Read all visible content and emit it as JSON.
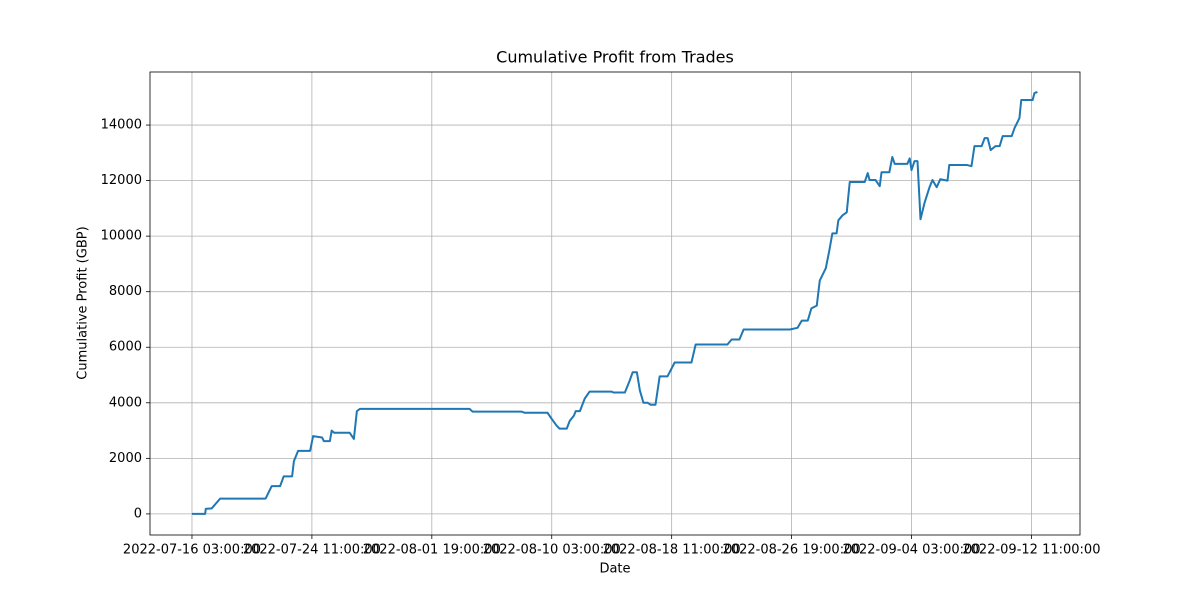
{
  "chart_data": {
    "type": "line",
    "title": "Cumulative Profit from Trades",
    "x_label": "Date",
    "y_label": "Cumulative Profit (GBP)",
    "x": [
      "2022-07-16 03:00",
      "2022-07-17 01:00",
      "2022-07-17 02:00",
      "2022-07-17 12:00",
      "2022-07-18 02:00",
      "2022-07-21 05:00",
      "2022-07-21 06:00",
      "2022-07-21 16:00",
      "2022-07-22 06:00",
      "2022-07-22 12:00",
      "2022-07-23 02:00",
      "2022-07-23 05:00",
      "2022-07-23 12:00",
      "2022-07-24 08:00",
      "2022-07-24 13:00",
      "2022-07-25 04:00",
      "2022-07-25 07:00",
      "2022-07-25 17:00",
      "2022-07-25 20:00",
      "2022-07-26 00:00",
      "2022-07-27 02:00",
      "2022-07-27 09:00",
      "2022-07-27 14:00",
      "2022-07-27 19:00",
      "2022-08-04 10:00",
      "2022-08-04 15:00",
      "2022-08-08 01:00",
      "2022-08-08 06:00",
      "2022-08-09 20:00",
      "2022-08-10 03:00",
      "2022-08-10 11:00",
      "2022-08-10 16:00",
      "2022-08-11 04:00",
      "2022-08-11 09:00",
      "2022-08-11 16:00",
      "2022-08-11 19:00",
      "2022-08-12 02:00",
      "2022-08-12 10:00",
      "2022-08-12 18:00",
      "2022-08-14 07:00",
      "2022-08-14 10:00",
      "2022-08-15 05:00",
      "2022-08-15 13:00",
      "2022-08-15 18:00",
      "2022-08-16 01:00",
      "2022-08-16 06:00",
      "2022-08-16 12:00",
      "2022-08-16 19:00",
      "2022-08-17 00:00",
      "2022-08-17 08:00",
      "2022-08-17 15:00",
      "2022-08-18 04:00",
      "2022-08-18 16:00",
      "2022-08-19 20:00",
      "2022-08-20 03:00",
      "2022-08-22 08:00",
      "2022-08-22 15:00",
      "2022-08-23 04:00",
      "2022-08-23 11:00",
      "2022-08-26 16:00",
      "2022-08-27 05:00",
      "2022-08-27 12:00",
      "2022-08-27 22:00",
      "2022-08-28 04:00",
      "2022-08-28 13:00",
      "2022-08-28 18:00",
      "2022-08-29 04:00",
      "2022-08-29 10:00",
      "2022-08-29 15:00",
      "2022-08-29 22:00",
      "2022-08-30 01:00",
      "2022-08-30 08:00",
      "2022-08-30 15:00",
      "2022-08-30 20:00",
      "2022-08-31 21:00",
      "2022-09-01 02:00",
      "2022-09-01 05:00",
      "2022-09-01 15:00",
      "2022-09-01 22:00",
      "2022-09-02 01:00",
      "2022-09-02 14:00",
      "2022-09-02 19:00",
      "2022-09-02 23:00",
      "2022-09-03 20:00",
      "2022-09-04 00:00",
      "2022-09-04 03:00",
      "2022-09-04 08:00",
      "2022-09-04 13:00",
      "2022-09-04 18:00",
      "2022-09-05 01:00",
      "2022-09-05 09:00",
      "2022-09-05 14:00",
      "2022-09-05 21:00",
      "2022-09-06 03:00",
      "2022-09-06 15:00",
      "2022-09-06 18:00",
      "2022-09-08 00:00",
      "2022-09-08 07:00",
      "2022-09-08 12:00",
      "2022-09-09 00:00",
      "2022-09-09 05:00",
      "2022-09-09 10:00",
      "2022-09-09 15:00",
      "2022-09-09 23:00",
      "2022-09-10 06:00",
      "2022-09-10 11:00",
      "2022-09-11 02:00",
      "2022-09-11 07:00",
      "2022-09-11 15:00",
      "2022-09-11 18:00",
      "2022-09-12 13:00",
      "2022-09-12 16:00",
      "2022-09-12 21:00"
    ],
    "values": [
      0,
      0,
      180,
      200,
      550,
      550,
      560,
      1000,
      1000,
      1350,
      1350,
      1900,
      2270,
      2270,
      2800,
      2750,
      2620,
      2620,
      3000,
      2920,
      2920,
      2700,
      3700,
      3780,
      3780,
      3680,
      3680,
      3640,
      3640,
      3420,
      3180,
      3070,
      3070,
      3350,
      3540,
      3700,
      3700,
      4150,
      4400,
      4400,
      4370,
      4370,
      4800,
      5100,
      5100,
      4440,
      4000,
      4000,
      3930,
      3930,
      4950,
      4950,
      5450,
      5450,
      6100,
      6100,
      6280,
      6280,
      6640,
      6640,
      6700,
      6960,
      6960,
      7400,
      7500,
      8400,
      8840,
      9490,
      10100,
      10100,
      10570,
      10750,
      10860,
      11950,
      11950,
      12270,
      12020,
      12020,
      11800,
      12300,
      12300,
      12850,
      12600,
      12600,
      12800,
      12380,
      12700,
      12700,
      10610,
      11220,
      11760,
      12020,
      11760,
      12050,
      12000,
      12560,
      12560,
      12520,
      13240,
      13240,
      13530,
      13530,
      13100,
      13240,
      13240,
      13600,
      13600,
      13900,
      14250,
      14900,
      14900,
      15150,
      15190
    ],
    "color": "#1f77b4",
    "xlim": [
      "2022-07-13 05:00",
      "2022-09-15 20:00"
    ],
    "xticks": [
      "2022-07-16 03:00:00",
      "2022-07-24 11:00:00",
      "2022-08-01 19:00:00",
      "2022-08-10 03:00:00",
      "2022-08-18 11:00:00",
      "2022-08-26 19:00:00",
      "2022-09-04 03:00:00",
      "2022-09-12 11:00:00"
    ],
    "ylim": [
      -760,
      15910
    ],
    "yticks": [
      0,
      2000,
      4000,
      6000,
      8000,
      10000,
      12000,
      14000
    ],
    "grid": true
  }
}
